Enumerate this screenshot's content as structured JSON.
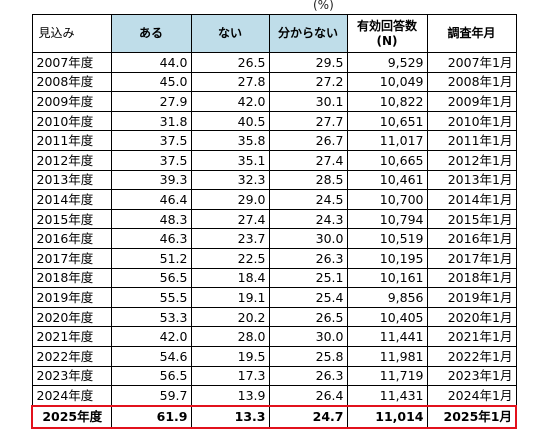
{
  "unit": "(%)",
  "headers": {
    "year": "見込み",
    "yes": "ある",
    "no": "ない",
    "unknown": "分からない",
    "responses_line1": "有効回答数",
    "responses_line2": "(N)",
    "survey_date": "調査年月"
  },
  "rows": [
    {
      "year": "2007年度",
      "yes": "44.0",
      "no": "26.5",
      "unknown": "29.5",
      "n": "9,529",
      "date": "2007年1月"
    },
    {
      "year": "2008年度",
      "yes": "45.0",
      "no": "27.8",
      "unknown": "27.2",
      "n": "10,049",
      "date": "2008年1月"
    },
    {
      "year": "2009年度",
      "yes": "27.9",
      "no": "42.0",
      "unknown": "30.1",
      "n": "10,822",
      "date": "2009年1月"
    },
    {
      "year": "2010年度",
      "yes": "31.8",
      "no": "40.5",
      "unknown": "27.7",
      "n": "10,651",
      "date": "2010年1月"
    },
    {
      "year": "2011年度",
      "yes": "37.5",
      "no": "35.8",
      "unknown": "26.7",
      "n": "11,017",
      "date": "2011年1月"
    },
    {
      "year": "2012年度",
      "yes": "37.5",
      "no": "35.1",
      "unknown": "27.4",
      "n": "10,665",
      "date": "2012年1月"
    },
    {
      "year": "2013年度",
      "yes": "39.3",
      "no": "32.3",
      "unknown": "28.5",
      "n": "10,461",
      "date": "2013年1月"
    },
    {
      "year": "2014年度",
      "yes": "46.4",
      "no": "29.0",
      "unknown": "24.5",
      "n": "10,700",
      "date": "2014年1月"
    },
    {
      "year": "2015年度",
      "yes": "48.3",
      "no": "27.4",
      "unknown": "24.3",
      "n": "10,794",
      "date": "2015年1月"
    },
    {
      "year": "2016年度",
      "yes": "46.3",
      "no": "23.7",
      "unknown": "30.0",
      "n": "10,519",
      "date": "2016年1月"
    },
    {
      "year": "2017年度",
      "yes": "51.2",
      "no": "22.5",
      "unknown": "26.3",
      "n": "10,195",
      "date": "2017年1月"
    },
    {
      "year": "2018年度",
      "yes": "56.5",
      "no": "18.4",
      "unknown": "25.1",
      "n": "10,161",
      "date": "2018年1月"
    },
    {
      "year": "2019年度",
      "yes": "55.5",
      "no": "19.1",
      "unknown": "25.4",
      "n": "9,856",
      "date": "2019年1月"
    },
    {
      "year": "2020年度",
      "yes": "53.3",
      "no": "20.2",
      "unknown": "26.5",
      "n": "10,405",
      "date": "2020年1月"
    },
    {
      "year": "2021年度",
      "yes": "42.0",
      "no": "28.0",
      "unknown": "30.0",
      "n": "11,441",
      "date": "2021年1月"
    },
    {
      "year": "2022年度",
      "yes": "54.6",
      "no": "19.5",
      "unknown": "25.8",
      "n": "11,981",
      "date": "2022年1月"
    },
    {
      "year": "2023年度",
      "yes": "56.5",
      "no": "17.3",
      "unknown": "26.3",
      "n": "11,719",
      "date": "2023年1月"
    },
    {
      "year": "2024年度",
      "yes": "59.7",
      "no": "13.9",
      "unknown": "26.4",
      "n": "11,431",
      "date": "2024年1月"
    },
    {
      "year": "2025年度",
      "yes": "61.9",
      "no": "13.3",
      "unknown": "24.7",
      "n": "11,014",
      "date": "2025年1月",
      "highlight": true
    }
  ],
  "colors": {
    "header_accent": "#bfdde9",
    "highlight_border": "#e2111c"
  }
}
